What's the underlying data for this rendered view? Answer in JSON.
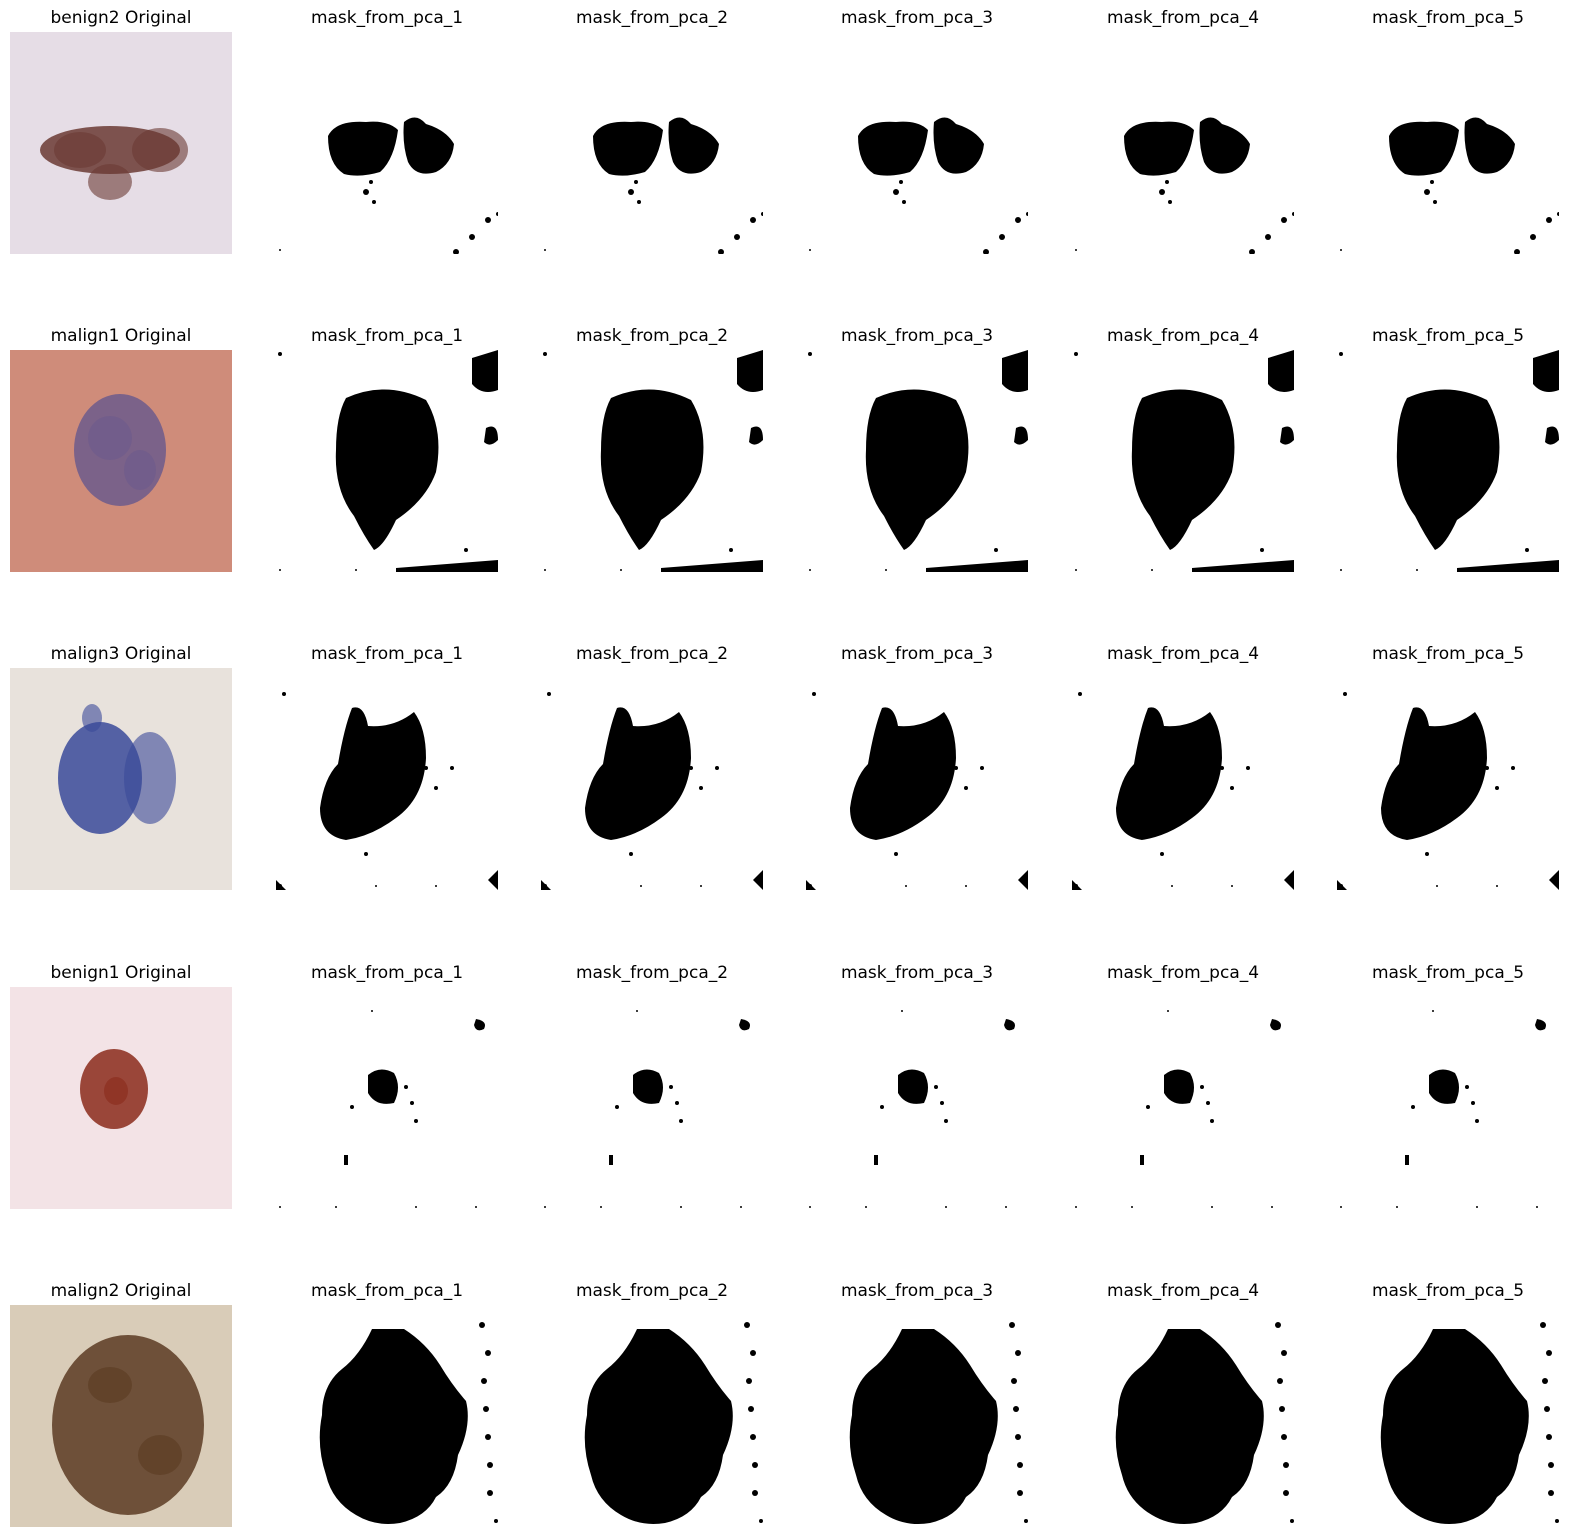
{
  "rows": [
    {
      "sample": "benign2",
      "original_title": "benign2 Original",
      "mask_titles": [
        "mask_from_pca_1",
        "mask_from_pca_2",
        "mask_from_pca_3",
        "mask_from_pca_4",
        "mask_from_pca_5"
      ],
      "skin_color": "#e6dde6",
      "lesion_color": "#6a3a33"
    },
    {
      "sample": "malign1",
      "original_title": "malign1 Original",
      "mask_titles": [
        "mask_from_pca_1",
        "mask_from_pca_2",
        "mask_from_pca_3",
        "mask_from_pca_4",
        "mask_from_pca_5"
      ],
      "skin_color": "#cf8c7a",
      "lesion_color": "#6c5a8c"
    },
    {
      "sample": "malign3",
      "original_title": "malign3 Original",
      "mask_titles": [
        "mask_from_pca_1",
        "mask_from_pca_2",
        "mask_from_pca_3",
        "mask_from_pca_4",
        "mask_from_pca_5"
      ],
      "skin_color": "#e8e2dc",
      "lesion_color": "#3a4a9a"
    },
    {
      "sample": "benign1",
      "original_title": "benign1 Original",
      "mask_titles": [
        "mask_from_pca_1",
        "mask_from_pca_2",
        "mask_from_pca_3",
        "mask_from_pca_4",
        "mask_from_pca_5"
      ],
      "skin_color": "#f3e3e6",
      "lesion_color": "#8a2a1a"
    },
    {
      "sample": "malign2",
      "original_title": "malign2 Original",
      "mask_titles": [
        "mask_from_pca_1",
        "mask_from_pca_2",
        "mask_from_pca_3",
        "mask_from_pca_4",
        "mask_from_pca_5"
      ],
      "skin_color": "#d9ccb8",
      "lesion_color": "#5a3a22"
    }
  ]
}
